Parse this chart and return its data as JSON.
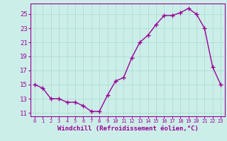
{
  "x": [
    0,
    1,
    2,
    3,
    4,
    5,
    6,
    7,
    8,
    9,
    10,
    11,
    12,
    13,
    14,
    15,
    16,
    17,
    18,
    19,
    20,
    21,
    22,
    23
  ],
  "y": [
    15,
    14.5,
    13,
    13,
    12.5,
    12.5,
    12,
    11.2,
    11.2,
    13.5,
    15.5,
    16,
    18.8,
    21,
    22,
    23.5,
    24.8,
    24.8,
    25.2,
    25.8,
    25,
    23,
    17.5,
    15
  ],
  "xlabel": "Windchill (Refroidissement éolien,°C)",
  "yticks": [
    11,
    13,
    15,
    17,
    19,
    21,
    23,
    25
  ],
  "xticks": [
    0,
    1,
    2,
    3,
    4,
    5,
    6,
    7,
    8,
    9,
    10,
    11,
    12,
    13,
    14,
    15,
    16,
    17,
    18,
    19,
    20,
    21,
    22,
    23
  ],
  "ylim": [
    10.5,
    26.5
  ],
  "xlim": [
    -0.5,
    23.5
  ],
  "line_color": "#990099",
  "bg_color": "#cceee8",
  "grid_color": "#aad8d0",
  "marker": "D",
  "marker_size": 2.5,
  "line_width": 1.0
}
